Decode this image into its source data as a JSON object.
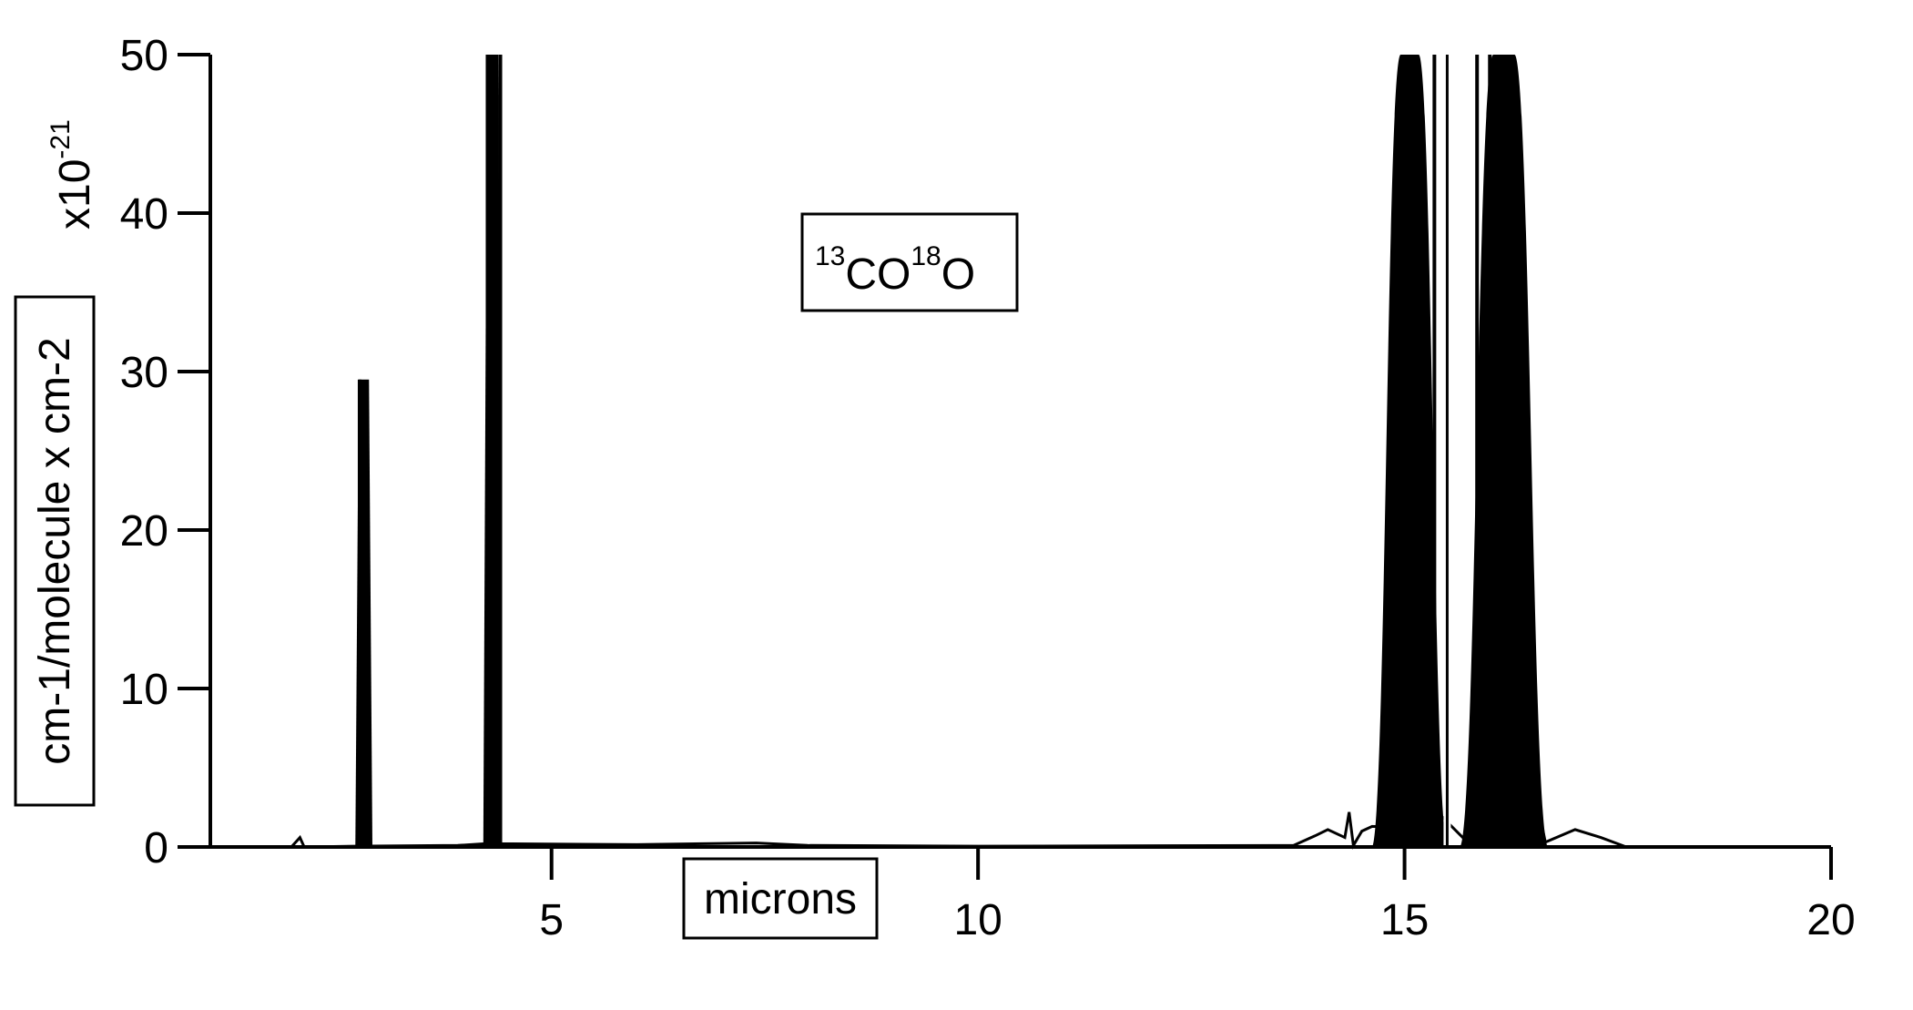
{
  "chart_data": {
    "type": "line",
    "title": "",
    "annotation": {
      "label_parts": [
        "13",
        "CO",
        "18",
        "O"
      ]
    },
    "xlabel": "microns",
    "ylabel": "cm-1/molecule x cm-2",
    "y_multiplier": {
      "base": "x10",
      "exponent": "-21"
    },
    "xlim": [
      1.0,
      20.0
    ],
    "ylim": [
      0,
      50
    ],
    "x_ticks": [
      5,
      10,
      15,
      20
    ],
    "x_tick_labels": [
      "5",
      "10",
      "15",
      "20"
    ],
    "y_ticks": [
      0,
      10,
      20,
      30,
      40,
      50
    ],
    "y_tick_labels": [
      "0",
      "10",
      "20",
      "30",
      "40",
      "50"
    ],
    "grid": false,
    "legend": "none",
    "color": "#000000",
    "series": [
      {
        "baseline": [
          [
            1.95,
            0.0
          ],
          [
            2.05,
            0.6
          ],
          [
            2.1,
            0.0
          ],
          [
            2.7,
            0.05
          ],
          [
            3.9,
            0.1
          ],
          [
            4.2,
            0.2
          ],
          [
            4.55,
            0.2
          ],
          [
            6.0,
            0.15
          ],
          [
            7.4,
            0.25
          ],
          [
            8.0,
            0.1
          ],
          [
            10.0,
            0.05
          ],
          [
            13.7,
            0.1
          ],
          [
            13.95,
            0.7
          ],
          [
            14.1,
            1.1
          ],
          [
            14.3,
            0.6
          ],
          [
            14.35,
            2.2
          ],
          [
            14.4,
            0.1
          ],
          [
            14.5,
            1.0
          ],
          [
            14.62,
            1.3
          ],
          [
            15.05,
            1.2
          ],
          [
            15.18,
            3.5
          ],
          [
            15.25,
            3.5
          ],
          [
            15.33,
            2.5
          ],
          [
            15.7,
            0.5
          ],
          [
            16.2,
            0.8
          ],
          [
            16.5,
            0.6
          ],
          [
            16.58,
            2.2
          ],
          [
            16.65,
            0.3
          ],
          [
            17.0,
            1.1
          ],
          [
            17.3,
            0.6
          ],
          [
            17.6,
            0.0
          ]
        ],
        "bands": [
          {
            "x_start": 2.7,
            "x_end": 2.9,
            "peak": 29.5
          },
          {
            "x_start": 4.2,
            "x_end": 4.42,
            "peak": 50
          },
          {
            "x_start": 14.62,
            "x_end": 15.5,
            "peak": 50
          },
          {
            "x_start": 15.65,
            "x_end": 16.68,
            "peak": 50
          }
        ],
        "peaks": [
          [
            2.75,
            29.5
          ],
          [
            2.8,
            27.5
          ],
          [
            2.85,
            19.5
          ],
          [
            4.25,
            50
          ],
          [
            4.4,
            50
          ],
          [
            15.05,
            50
          ],
          [
            15.35,
            50
          ],
          [
            15.85,
            50
          ],
          [
            16.0,
            50
          ]
        ]
      }
    ]
  }
}
